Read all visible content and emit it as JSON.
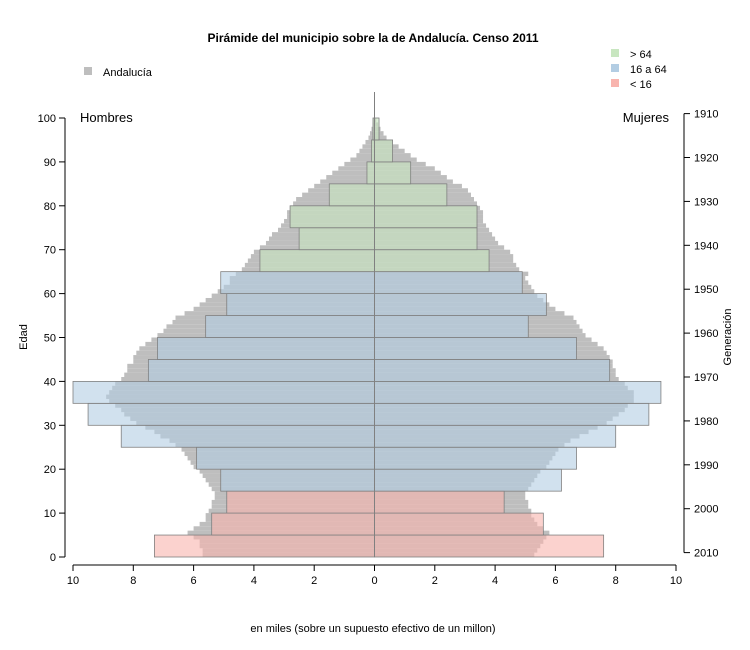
{
  "chart_data": {
    "type": "bar",
    "title": "Pirámide del municipio sobre la de Andalucía. Censo 2011",
    "xlabel": "en miles (sobre un supuesto efectivo de un millon)",
    "ylabel_left": "Edad",
    "ylabel_right": "Generación",
    "side_labels": {
      "left": "Hombres",
      "right": "Mujeres"
    },
    "xlim": [
      -10,
      10
    ],
    "ylim": [
      0,
      100
    ],
    "x_ticks": [
      -10,
      -8,
      -6,
      -4,
      -2,
      0,
      2,
      4,
      6,
      8,
      10
    ],
    "x_tick_labels": [
      "10",
      "8",
      "6",
      "4",
      "2",
      "0",
      "2",
      "4",
      "6",
      "8",
      "10"
    ],
    "y_ticks": [
      0,
      10,
      20,
      30,
      40,
      50,
      60,
      70,
      80,
      90,
      100
    ],
    "y_tick_labels": [
      "0",
      "10",
      "20",
      "30",
      "40",
      "50",
      "60",
      "70",
      "80",
      "90",
      "100"
    ],
    "generation_ticks": [
      {
        "age": 1,
        "label": "2010"
      },
      {
        "age": 11,
        "label": "2000"
      },
      {
        "age": 21,
        "label": "1990"
      },
      {
        "age": 31,
        "label": "1980"
      },
      {
        "age": 41,
        "label": "1970"
      },
      {
        "age": 51,
        "label": "1960"
      },
      {
        "age": 61,
        "label": "1950"
      },
      {
        "age": 71,
        "label": "1940"
      },
      {
        "age": 81,
        "label": "1930"
      },
      {
        "age": 91,
        "label": "1920"
      },
      {
        "age": 101,
        "label": "1910"
      }
    ],
    "legend_left": {
      "label": "Andalucía",
      "color": "#bebebe",
      "placement": "top-left"
    },
    "legend_right": {
      "placement": "top-right",
      "items": [
        {
          "label": "> 64",
          "color": "#c8e6c0"
        },
        {
          "label": "16 a 64",
          "color": "#b3cde3"
        },
        {
          "label": "< 16",
          "color": "#f8b4ae"
        }
      ]
    },
    "colors": {
      "young": "#f8b4ae",
      "adult": "#b3cde3",
      "old": "#c8e6c0",
      "andalucia": "#bebebe",
      "grid": "#808080"
    },
    "municipio_groups": [
      {
        "age_from": 0,
        "age_to": 5,
        "men": 7.3,
        "women": 7.6
      },
      {
        "age_from": 5,
        "age_to": 10,
        "men": 5.4,
        "women": 5.6
      },
      {
        "age_from": 10,
        "age_to": 15,
        "men": 4.9,
        "women": 4.3
      },
      {
        "age_from": 15,
        "age_to": 20,
        "men": 5.1,
        "women": 6.2
      },
      {
        "age_from": 20,
        "age_to": 25,
        "men": 5.9,
        "women": 6.7
      },
      {
        "age_from": 25,
        "age_to": 30,
        "men": 8.4,
        "women": 8.0
      },
      {
        "age_from": 30,
        "age_to": 35,
        "men": 9.5,
        "women": 9.1
      },
      {
        "age_from": 35,
        "age_to": 40,
        "men": 10.0,
        "women": 9.5
      },
      {
        "age_from": 40,
        "age_to": 45,
        "men": 7.5,
        "women": 7.8
      },
      {
        "age_from": 45,
        "age_to": 50,
        "men": 7.2,
        "women": 6.7
      },
      {
        "age_from": 50,
        "age_to": 55,
        "men": 5.6,
        "women": 5.1
      },
      {
        "age_from": 55,
        "age_to": 60,
        "men": 4.9,
        "women": 5.7
      },
      {
        "age_from": 60,
        "age_to": 65,
        "men": 5.1,
        "women": 4.9
      },
      {
        "age_from": 65,
        "age_to": 70,
        "men": 3.8,
        "women": 3.8
      },
      {
        "age_from": 70,
        "age_to": 75,
        "men": 2.5,
        "women": 3.4
      },
      {
        "age_from": 75,
        "age_to": 80,
        "men": 2.8,
        "women": 3.4
      },
      {
        "age_from": 80,
        "age_to": 85,
        "men": 1.5,
        "women": 2.4
      },
      {
        "age_from": 85,
        "age_to": 90,
        "men": 0.25,
        "women": 1.2
      },
      {
        "age_from": 90,
        "age_to": 95,
        "men": 0.1,
        "women": 0.6
      },
      {
        "age_from": 95,
        "age_to": 100,
        "men": 0.05,
        "women": 0.15
      }
    ],
    "andalucia_single_age": {
      "ages_from": 0,
      "men": [
        5.7,
        5.7,
        5.8,
        5.8,
        6.0,
        6.2,
        6.0,
        5.8,
        5.6,
        5.6,
        5.5,
        5.4,
        5.4,
        5.3,
        5.3,
        5.4,
        5.5,
        5.6,
        5.7,
        5.8,
        6.0,
        6.1,
        6.2,
        6.3,
        6.4,
        6.6,
        6.8,
        7.1,
        7.3,
        7.6,
        7.9,
        8.1,
        8.3,
        8.4,
        8.6,
        8.8,
        8.9,
        8.8,
        8.7,
        8.6,
        8.4,
        8.3,
        8.2,
        8.2,
        8.0,
        8.0,
        7.9,
        7.8,
        7.6,
        7.4,
        7.2,
        7.0,
        6.9,
        6.7,
        6.6,
        6.3,
        6.0,
        5.8,
        5.6,
        5.4,
        5.2,
        5.0,
        4.8,
        4.8,
        4.6,
        4.4,
        4.3,
        4.2,
        4.1,
        4.0,
        3.8,
        3.6,
        3.5,
        3.4,
        3.2,
        3.1,
        3.0,
        2.9,
        2.9,
        2.8,
        2.7,
        2.6,
        2.4,
        2.2,
        2.0,
        1.8,
        1.6,
        1.4,
        1.2,
        1.0,
        0.8,
        0.6,
        0.5,
        0.4,
        0.3,
        0.2,
        0.15,
        0.1,
        0.06,
        0.04
      ],
      "women": [
        5.3,
        5.4,
        5.5,
        5.6,
        5.7,
        5.8,
        5.6,
        5.4,
        5.3,
        5.2,
        5.2,
        5.1,
        5.1,
        5.0,
        5.0,
        5.1,
        5.2,
        5.3,
        5.4,
        5.5,
        5.7,
        5.8,
        5.9,
        6.0,
        6.1,
        6.3,
        6.5,
        6.8,
        7.1,
        7.4,
        7.7,
        7.9,
        8.1,
        8.3,
        8.4,
        8.6,
        8.6,
        8.6,
        8.4,
        8.3,
        8.1,
        8.0,
        8.0,
        7.9,
        7.9,
        7.8,
        7.7,
        7.6,
        7.4,
        7.2,
        7.0,
        6.9,
        6.8,
        6.7,
        6.6,
        6.3,
        6.0,
        5.8,
        5.6,
        5.4,
        5.3,
        5.2,
        5.1,
        5.0,
        5.1,
        4.8,
        4.7,
        4.6,
        4.6,
        4.5,
        4.3,
        4.1,
        4.0,
        3.9,
        3.8,
        3.7,
        3.6,
        3.6,
        3.6,
        3.5,
        3.4,
        3.3,
        3.2,
        3.1,
        2.9,
        2.6,
        2.4,
        2.2,
        2.0,
        1.7,
        1.4,
        1.2,
        1.0,
        0.8,
        0.6,
        0.4,
        0.3,
        0.2,
        0.12,
        0.06
      ]
    }
  }
}
